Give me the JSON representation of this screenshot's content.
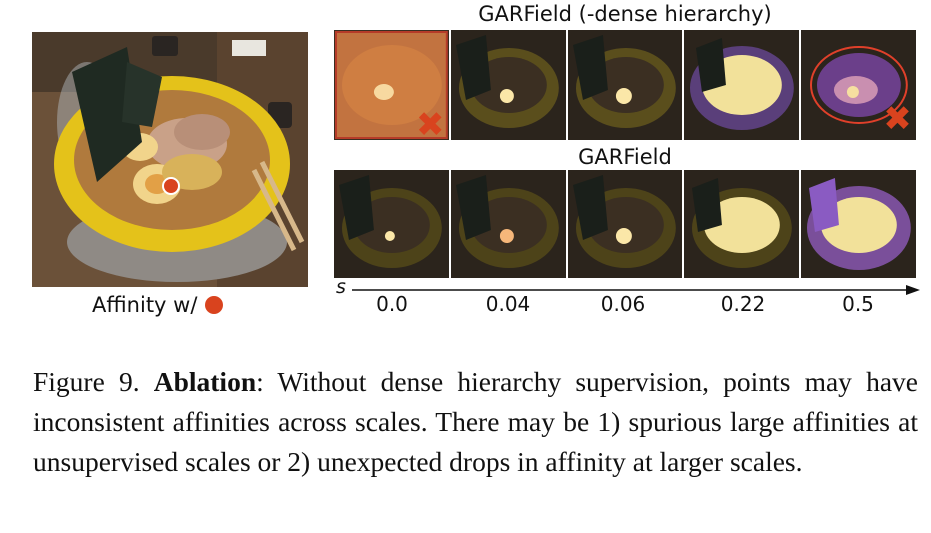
{
  "figure": {
    "ref_label": "Affinity w/",
    "row_titles": {
      "top": "GARField (-dense hierarchy)",
      "bottom": "GARField"
    },
    "scale_axis": {
      "symbol": "s",
      "ticks": [
        "0.0",
        "0.04",
        "0.06",
        "0.22",
        "0.5"
      ]
    },
    "colors": {
      "marker": "#d9431e",
      "highlight": "#f4c46a",
      "object_purple": "#8a5bc2"
    },
    "icons": [
      "red-dot-marker",
      "red-x-mark"
    ]
  },
  "caption": {
    "prefix": "Figure 9. ",
    "bold": "Ablation",
    "text": ": Without dense hierarchy supervision, points may have inconsistent affinities across scales. There may be 1) spurious large affinities at unsupervised scales or 2) unexpected drops in affinity at larger scales."
  }
}
